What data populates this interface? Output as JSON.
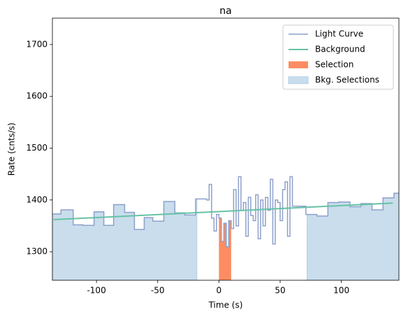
{
  "chart_data": {
    "type": "step",
    "title": "na",
    "xlabel": "Time (s)",
    "ylabel": "Rate (cnts/s)",
    "xlim": [
      -136,
      147
    ],
    "ylim": [
      1245,
      1751
    ],
    "xticks": [
      -100,
      -50,
      0,
      50,
      100
    ],
    "yticks": [
      1300,
      1400,
      1500,
      1600,
      1700
    ],
    "legend": "upper right",
    "light_curve": {
      "name": "Light Curve",
      "color": "#8da0cb",
      "bins": [
        -136,
        -129,
        -119,
        -111,
        -102,
        -94,
        -86,
        -77,
        -69,
        -61,
        -54,
        -45,
        -36,
        -28,
        -19,
        -10,
        -8,
        -6,
        -4,
        -2,
        0,
        2,
        4,
        6,
        8,
        10,
        12,
        14,
        16,
        18,
        20,
        22,
        24,
        26,
        28,
        30,
        32,
        34,
        36,
        38,
        40,
        42,
        44,
        46,
        48,
        50,
        52,
        54,
        56,
        58,
        60,
        71,
        80,
        89,
        98,
        107,
        116,
        125,
        134,
        143,
        147
      ],
      "values": [
        1373,
        1381,
        1352,
        1351,
        1377,
        1351,
        1391,
        1376,
        1343,
        1366,
        1359,
        1397,
        1375,
        1371,
        1402,
        1400,
        1430,
        1365,
        1340,
        1372,
        1365,
        1320,
        1355,
        1310,
        1360,
        1345,
        1420,
        1350,
        1445,
        1380,
        1395,
        1330,
        1405,
        1370,
        1360,
        1410,
        1325,
        1400,
        1350,
        1405,
        1380,
        1440,
        1315,
        1400,
        1395,
        1360,
        1420,
        1435,
        1330,
        1445,
        1388,
        1372,
        1369,
        1395,
        1396,
        1387,
        1393,
        1381,
        1404,
        1413
      ]
    },
    "background": {
      "name": "Background",
      "color": "#66c2a5",
      "x": [
        -135,
        142
      ],
      "values": [
        1362,
        1394
      ]
    },
    "selection": {
      "name": "Selection",
      "color": "#fc8d62",
      "ranges": [
        [
          0,
          10
        ]
      ]
    },
    "bkg_selections": {
      "name": "Bkg. Selections",
      "color": "#c9ddec",
      "ranges": [
        [
          -136,
          -18
        ],
        [
          72,
          147
        ]
      ]
    }
  }
}
